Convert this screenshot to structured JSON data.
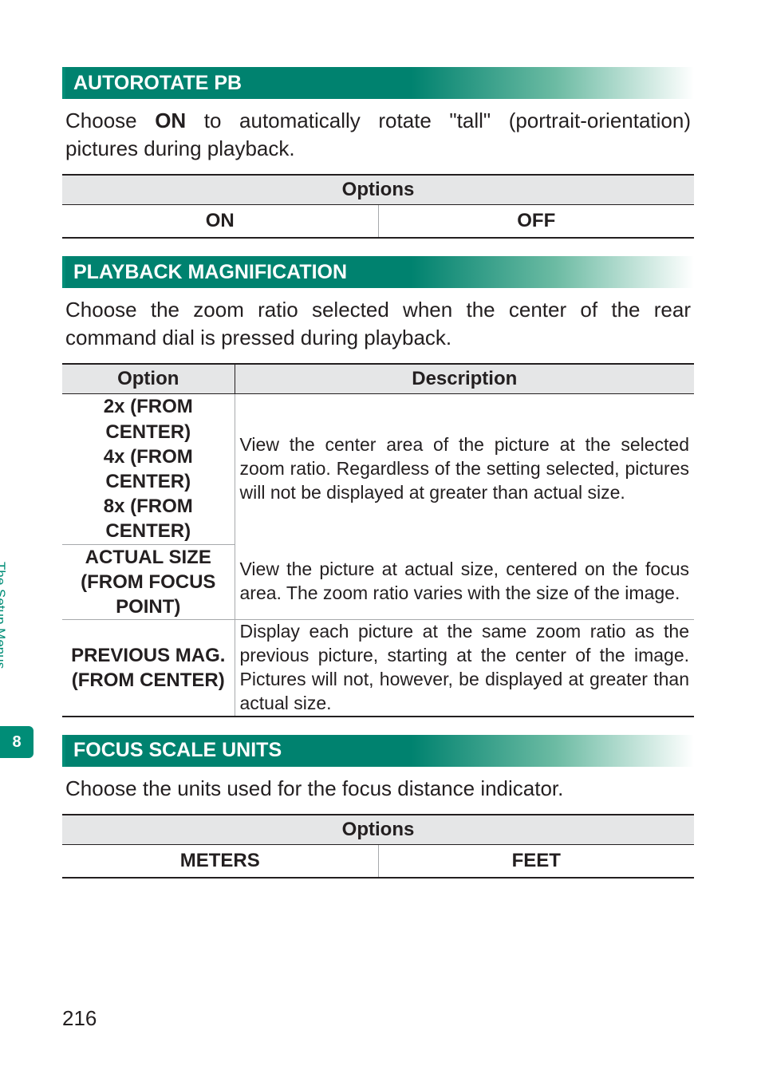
{
  "sidebar": {
    "label": "The Setup Menus",
    "chapter": "8",
    "label_color": "#008d77",
    "box_color": "#008d77"
  },
  "page_number": "216",
  "sections": [
    {
      "title": "AUTOROTATE PB",
      "body_pre": "Choose ",
      "body_bold": "ON",
      "body_post": " to automatically rotate \"tall\" (portrait-orientation) pictures during playback.",
      "options_header": "Options",
      "options": [
        "ON",
        "OFF"
      ]
    },
    {
      "title": "PLAYBACK MAGNIFICATION",
      "body": "Choose the zoom ratio selected when the center of the rear command dial is pressed during playback.",
      "col_option": "Option",
      "col_desc": "Description",
      "rows": {
        "r1_opt": "2x (FROM CENTER)",
        "r2_opt": "4x (FROM CENTER)",
        "r3_opt": "8x (FROM CENTER)",
        "r123_desc": "View the center area of the picture at the selected zoom ratio. Regardless of the setting selected, pictures will not be displayed at greater than actual size.",
        "r4_opt_l1": "ACTUAL SIZE",
        "r4_opt_l2": "(FROM FOCUS POINT)",
        "r4_desc": "View the picture at actual size, centered on the focus area. The zoom ratio varies with the size of the image.",
        "r5_opt_l1": "PREVIOUS MAG.",
        "r5_opt_l2": "(FROM CENTER)",
        "r5_desc": "Display each picture at the same zoom ratio as the previous picture, starting at the center of the image. Pictures will not, however, be displayed at greater than actual size."
      }
    },
    {
      "title": "FOCUS SCALE UNITS",
      "body": "Choose the units used for the focus distance indicator.",
      "options_header": "Options",
      "options": [
        "METERS",
        "FEET"
      ]
    }
  ],
  "styling": {
    "heading_gradient_start": "#00826f",
    "heading_gradient_end": "#ffffff",
    "heading_text_color": "#ffffff",
    "table_header_bg": "#e5e6e7",
    "table_border": "#231f20",
    "table_inner_border": "#a7a9ac",
    "body_font_size_pt": 20,
    "heading_font_size_pt": 19,
    "page_bg": "#ffffff"
  }
}
